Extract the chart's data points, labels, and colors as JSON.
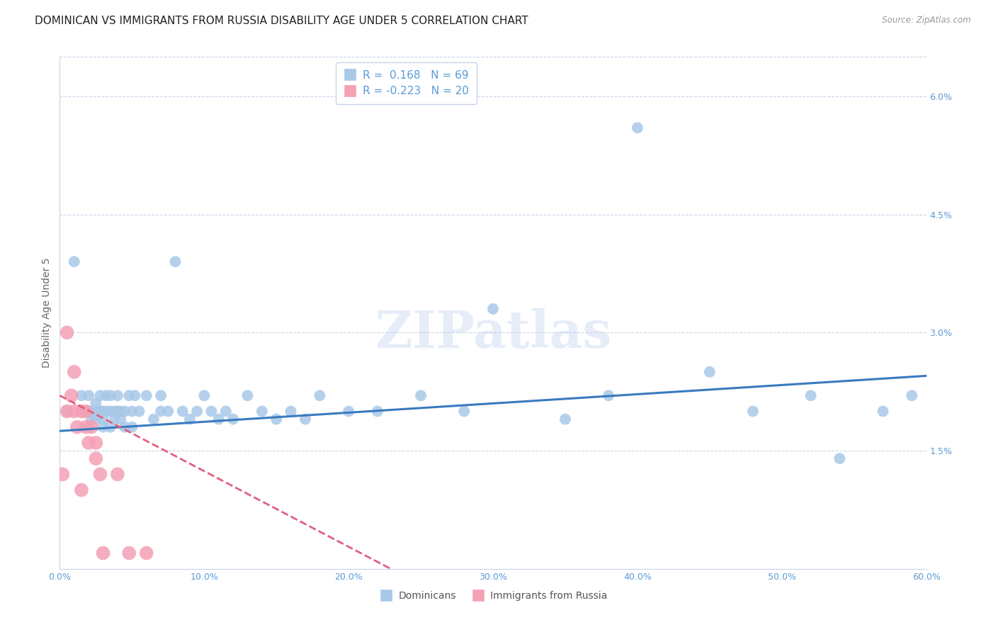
{
  "title": "DOMINICAN VS IMMIGRANTS FROM RUSSIA DISABILITY AGE UNDER 5 CORRELATION CHART",
  "source": "Source: ZipAtlas.com",
  "ylabel": "Disability Age Under 5",
  "watermark": "ZIPatlas",
  "r_dominican": 0.168,
  "n_dominican": 69,
  "r_russia": -0.223,
  "n_russia": 20,
  "blue_color": "#a8c8e8",
  "pink_color": "#f4a0b5",
  "blue_line_color": "#3a7abf",
  "pink_line_color": "#e06080",
  "axis_color": "#5b9bd5",
  "xlim": [
    0.0,
    0.6
  ],
  "ylim": [
    0.0,
    0.065
  ],
  "yticks_right": [
    0.015,
    0.03,
    0.045,
    0.06
  ],
  "ytick_labels_right": [
    "1.5%",
    "3.0%",
    "4.5%",
    "6.0%"
  ],
  "xtick_labels": [
    "0.0%",
    "10.0%",
    "20.0%",
    "30.0%",
    "40.0%",
    "50.0%",
    "60.0%"
  ],
  "grid_color": "#c8d4e8",
  "title_fontsize": 11,
  "axis_label_fontsize": 10,
  "tick_fontsize": 9,
  "watermark_fontsize": 52,
  "watermark_color": "#c8d8f0",
  "watermark_alpha": 0.45,
  "blue_x": [
    0.005,
    0.01,
    0.015,
    0.015,
    0.02,
    0.02,
    0.02,
    0.022,
    0.022,
    0.025,
    0.025,
    0.025,
    0.028,
    0.028,
    0.03,
    0.03,
    0.03,
    0.032,
    0.032,
    0.035,
    0.035,
    0.035,
    0.038,
    0.038,
    0.04,
    0.04,
    0.042,
    0.042,
    0.045,
    0.045,
    0.048,
    0.05,
    0.05,
    0.052,
    0.055,
    0.06,
    0.065,
    0.07,
    0.07,
    0.075,
    0.08,
    0.085,
    0.09,
    0.095,
    0.1,
    0.105,
    0.11,
    0.115,
    0.12,
    0.13,
    0.14,
    0.15,
    0.16,
    0.17,
    0.18,
    0.2,
    0.22,
    0.25,
    0.28,
    0.3,
    0.35,
    0.38,
    0.4,
    0.45,
    0.48,
    0.52,
    0.54,
    0.57,
    0.59
  ],
  "blue_y": [
    0.02,
    0.039,
    0.02,
    0.022,
    0.018,
    0.02,
    0.022,
    0.02,
    0.019,
    0.02,
    0.019,
    0.021,
    0.02,
    0.022,
    0.018,
    0.02,
    0.019,
    0.022,
    0.02,
    0.018,
    0.02,
    0.022,
    0.02,
    0.019,
    0.022,
    0.02,
    0.02,
    0.019,
    0.018,
    0.02,
    0.022,
    0.02,
    0.018,
    0.022,
    0.02,
    0.022,
    0.019,
    0.022,
    0.02,
    0.02,
    0.039,
    0.02,
    0.019,
    0.02,
    0.022,
    0.02,
    0.019,
    0.02,
    0.019,
    0.022,
    0.02,
    0.019,
    0.02,
    0.019,
    0.022,
    0.02,
    0.02,
    0.022,
    0.02,
    0.033,
    0.019,
    0.022,
    0.056,
    0.025,
    0.02,
    0.022,
    0.014,
    0.02,
    0.022
  ],
  "pink_x": [
    0.002,
    0.005,
    0.005,
    0.008,
    0.01,
    0.01,
    0.012,
    0.015,
    0.015,
    0.018,
    0.018,
    0.02,
    0.022,
    0.025,
    0.025,
    0.028,
    0.03,
    0.04,
    0.048,
    0.06
  ],
  "pink_y": [
    0.012,
    0.02,
    0.03,
    0.022,
    0.025,
    0.02,
    0.018,
    0.02,
    0.01,
    0.02,
    0.018,
    0.016,
    0.018,
    0.014,
    0.016,
    0.012,
    0.002,
    0.012,
    0.002,
    0.002
  ]
}
